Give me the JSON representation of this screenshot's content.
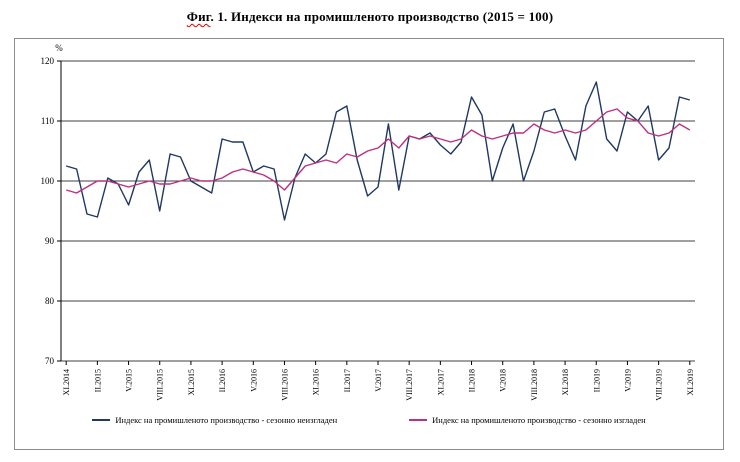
{
  "header": {
    "title_word_underlined": "Фиг",
    "title_rest": ". 1. Индекси на промишленото производство (2015 = 100)"
  },
  "chart_data": {
    "type": "line",
    "title": "Фиг. 1. Индекси на промишленото производство (2015 = 100)",
    "ylabel": "%",
    "xlabel": "",
    "ylim": [
      70,
      120
    ],
    "y_ticks": [
      70,
      80,
      90,
      100,
      110,
      120
    ],
    "grid": "horizontal",
    "legend_position": "bottom",
    "x": [
      "XI.2014",
      "XII.2014",
      "I.2015",
      "II.2015",
      "III.2015",
      "IV.2015",
      "V.2015",
      "VI.2015",
      "VII.2015",
      "VIII.2015",
      "IX.2015",
      "X.2015",
      "XI.2015",
      "XII.2015",
      "I.2016",
      "II.2016",
      "III.2016",
      "IV.2016",
      "V.2016",
      "VI.2016",
      "VII.2016",
      "VIII.2016",
      "IX.2016",
      "X.2016",
      "XI.2016",
      "XII.2016",
      "I.2017",
      "II.2017",
      "III.2017",
      "IV.2017",
      "V.2017",
      "VI.2017",
      "VII.2017",
      "VIII.2017",
      "IX.2017",
      "X.2017",
      "XI.2017",
      "XII.2017",
      "I.2018",
      "II.2018",
      "III.2018",
      "IV.2018",
      "V.2018",
      "VI.2018",
      "VII.2018",
      "VIII.2018",
      "IX.2018",
      "X.2018",
      "XI.2018",
      "XII.2018",
      "I.2019",
      "II.2019",
      "III.2019",
      "IV.2019",
      "V.2019",
      "VI.2019",
      "VII.2019",
      "VIII.2019",
      "IX.2019",
      "X.2019",
      "XI.2019"
    ],
    "x_tick_labels": [
      "XI.2014",
      "II.2015",
      "V.2015",
      "VIII.2015",
      "XI.2015",
      "II.2016",
      "V.2016",
      "VIII.2016",
      "XI.2016",
      "II.2017",
      "V.2017",
      "VIII.2017",
      "XI.2017",
      "II.2018",
      "V.2018",
      "VIII.2018",
      "XI.2018",
      "II.2019",
      "V.2019",
      "VIII.2019",
      "XI.2019"
    ],
    "series": [
      {
        "name": "Индекс на промишленото производство - сезонно неизгладен",
        "color": "#1f3864",
        "values": [
          102.5,
          102,
          94.5,
          94,
          100.5,
          99.5,
          96,
          101.5,
          103.5,
          95,
          104.5,
          104,
          100,
          99,
          98,
          107,
          106.5,
          106.5,
          101.5,
          102.5,
          102,
          93.5,
          100.5,
          104.5,
          103,
          104.5,
          111.5,
          112.5,
          103.5,
          97.5,
          99,
          109.5,
          98.5,
          107.5,
          107,
          108,
          106,
          104.5,
          106.5,
          114,
          111,
          100,
          105.5,
          109.5,
          100,
          105,
          111.5,
          112,
          107.5,
          103.5,
          112.5,
          116.5,
          107,
          105,
          111.5,
          110,
          112.5,
          103.5,
          105.5,
          114,
          113.5
        ]
      },
      {
        "name": "Индекс на промишленото производство - сезонно изгладен",
        "color": "#bf2f7f",
        "values": [
          98.5,
          98,
          99,
          100,
          100,
          99.5,
          99,
          99.5,
          100,
          99.5,
          99.5,
          100,
          100.5,
          100,
          100,
          100.5,
          101.5,
          102,
          101.5,
          101,
          100,
          98.5,
          100.5,
          102.5,
          103,
          103.5,
          103,
          104.5,
          104,
          105,
          105.5,
          107,
          105.5,
          107.5,
          107,
          107.5,
          107,
          106.5,
          107,
          108.5,
          107.5,
          107,
          107.5,
          108,
          108,
          109.5,
          108.5,
          108,
          108.5,
          108,
          108.5,
          110,
          111.5,
          112,
          110.5,
          110,
          108,
          107.5,
          108,
          109.5,
          108.5
        ]
      }
    ]
  }
}
